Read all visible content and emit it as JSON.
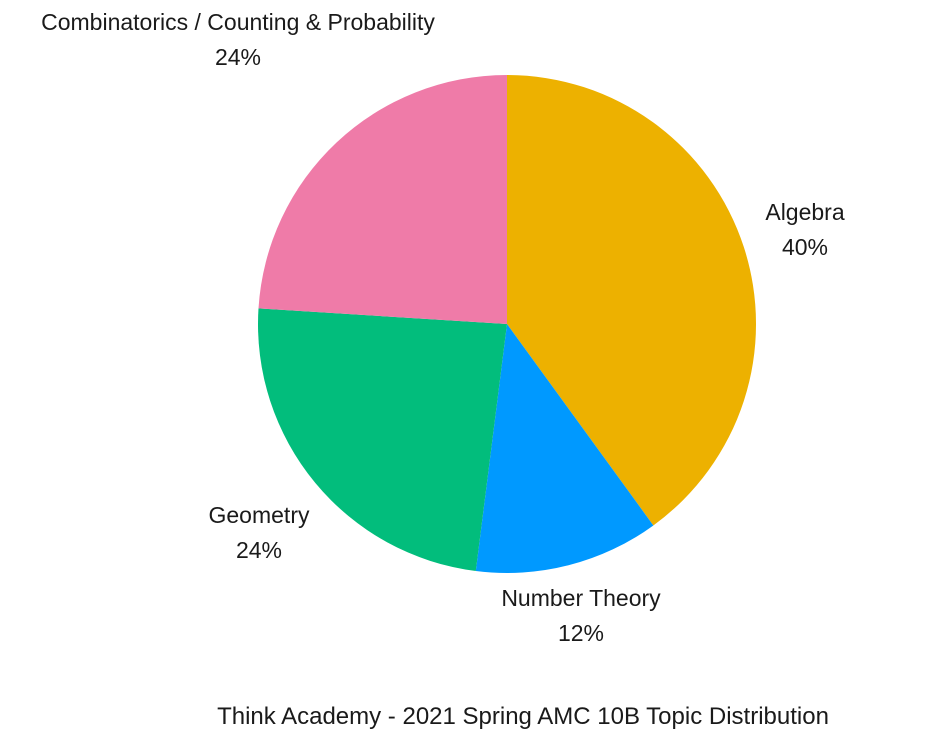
{
  "chart_data": {
    "type": "pie",
    "title": "Think Academy - 2021 Spring AMC 10B Topic Distribution",
    "slices": [
      {
        "label": "Algebra",
        "percent_label": "40%",
        "value": 40,
        "color": "#EDB100"
      },
      {
        "label": "Number Theory",
        "percent_label": "12%",
        "value": 12,
        "color": "#0099FF"
      },
      {
        "label": "Geometry",
        "percent_label": "24%",
        "value": 24,
        "color": "#02BD7C"
      },
      {
        "label": "Combinatorics / Counting & Probability",
        "percent_label": "24%",
        "value": 24,
        "color": "#EF7BA8"
      }
    ],
    "start_angle_deg": 0,
    "direction": "clockwise",
    "legend": "none"
  }
}
